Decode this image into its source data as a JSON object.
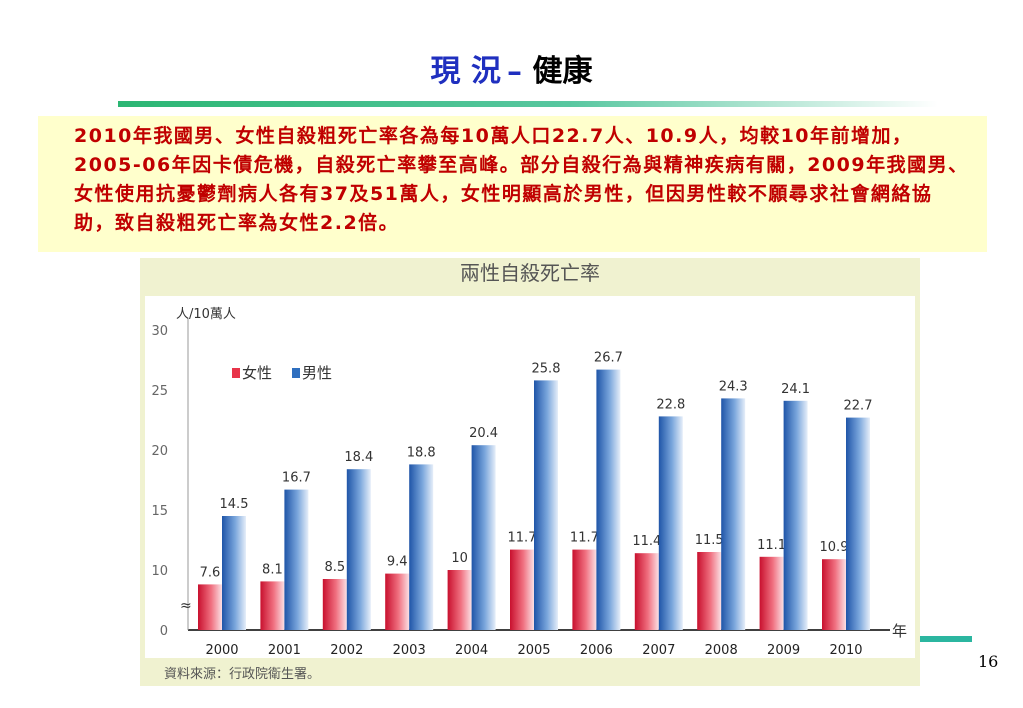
{
  "header": {
    "title_part1": "現 況",
    "title_dash": "–",
    "title_part2": " 健康"
  },
  "summary": {
    "text": "2010年我國男、女性自殺粗死亡率各為每10萬人口22.7人、10.9人，均較10年前增加，2005-06年因卡債危機，自殺死亡率攀至高峰。部分自殺行為與精神疾病有關，2009年我國男、女性使用抗憂鬱劑病人各有37及51萬人，女性明顯高於男性，但因男性較不願尋求社會網絡協助，致自殺粗死亡率為女性2.2倍。"
  },
  "chart_data": {
    "type": "bar",
    "title": "兩性自殺死亡率",
    "ylabel": "人/10萬人",
    "xlabel": "年",
    "categories": [
      "2000",
      "2001",
      "2002",
      "2003",
      "2004",
      "2005",
      "2006",
      "2007",
      "2008",
      "2009",
      "2010"
    ],
    "series": [
      {
        "name": "女性",
        "values": [
          7.6,
          8.1,
          8.5,
          9.4,
          10,
          11.7,
          11.7,
          11.4,
          11.5,
          11.1,
          10.9
        ]
      },
      {
        "name": "男性",
        "values": [
          14.5,
          16.7,
          18.4,
          18.8,
          20.4,
          25.8,
          26.7,
          22.8,
          24.3,
          24.1,
          22.7
        ]
      }
    ],
    "ylim": [
      0,
      30
    ],
    "yticks": [
      0,
      10,
      15,
      20,
      25,
      30
    ],
    "axis_break": "≈",
    "legend_position": "top-left",
    "grid": false,
    "colors": {
      "female": "#e8344a",
      "male": "#2f6fbf"
    }
  },
  "source": "資料來源：行政院衛生署。",
  "page_number": "16"
}
